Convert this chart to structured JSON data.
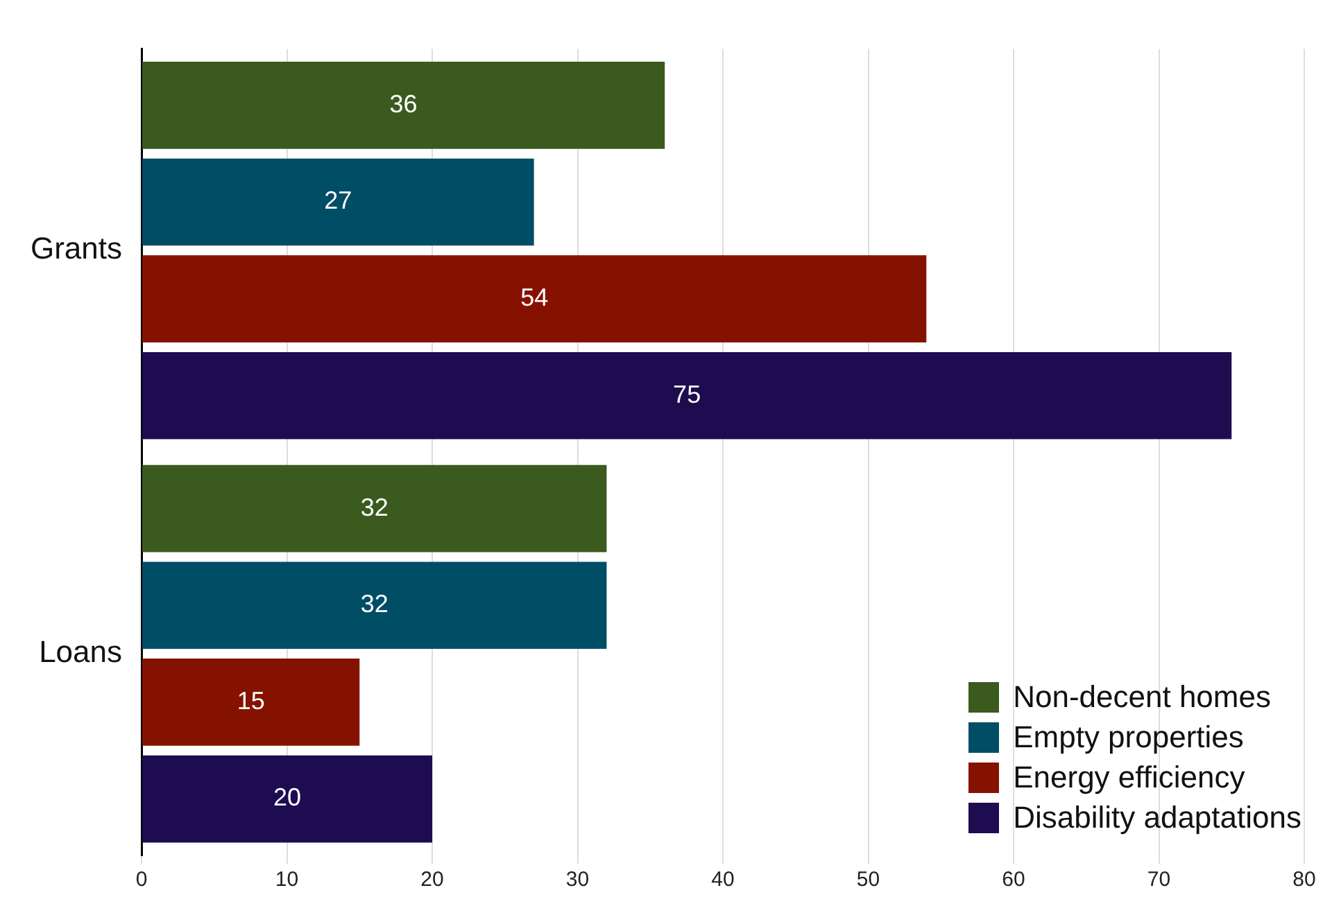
{
  "chart_data": {
    "type": "bar",
    "orientation": "horizontal",
    "categories": [
      "Grants",
      "Loans"
    ],
    "series": [
      {
        "name": "Non-decent homes",
        "color": "#3a5a1e",
        "values": [
          36,
          32
        ]
      },
      {
        "name": "Empty properties",
        "color": "#004d66",
        "values": [
          27,
          32
        ]
      },
      {
        "name": "Energy efficiency",
        "color": "#851200",
        "values": [
          54,
          15
        ]
      },
      {
        "name": "Disability adaptations",
        "color": "#1d0c50",
        "values": [
          75,
          20
        ]
      }
    ],
    "xlim": [
      0,
      80
    ],
    "xticks": [
      0,
      10,
      20,
      30,
      40,
      50,
      60,
      70,
      80
    ],
    "grid": "x",
    "legend": "bottom right",
    "data_labels": true
  }
}
